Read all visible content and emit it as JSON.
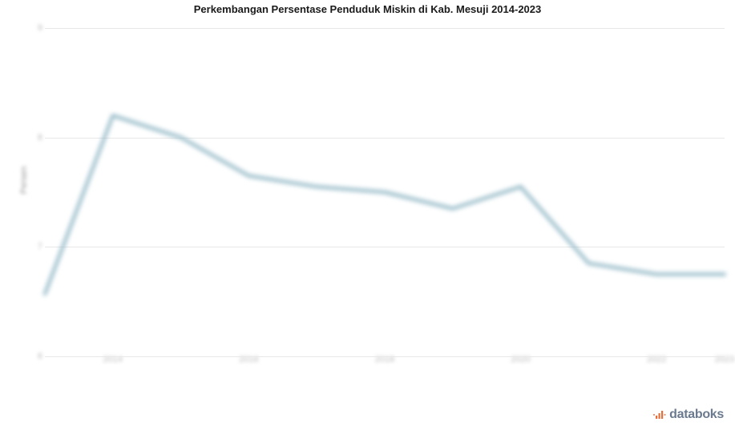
{
  "chart": {
    "type": "line",
    "title": "Perkembangan Persentase Penduduk Miskin di Kab. Mesuji 2014-2023",
    "title_fontsize": 13,
    "title_weight": "bold",
    "title_color": "#1a1a1a",
    "background_color": "#ffffff",
    "ylabel": "Persen",
    "label_fontsize": 11,
    "grid_color": "#e8e8e8",
    "line_color": "#8fb6c4",
    "line_width": 4,
    "area_blur": true,
    "xlim": [
      "2013",
      "2023"
    ],
    "ylim": [
      6,
      9
    ],
    "ytick_step": 1,
    "yticks": [
      6,
      7,
      8,
      9
    ],
    "ytick_labels": [
      "6",
      "7",
      "8",
      "9"
    ],
    "xticks": [
      "2014",
      "2016",
      "2018",
      "2020",
      "2022",
      "2023"
    ],
    "xtick_labels": [
      "2014",
      "2016",
      "2018",
      "2020",
      "2022",
      "2023"
    ],
    "x_values": [
      "2013",
      "2014",
      "2015",
      "2016",
      "2017",
      "2018",
      "2019",
      "2020",
      "2021",
      "2022",
      "2023"
    ],
    "series": [
      {
        "name": "Persentase Penduduk Miskin",
        "color": "#8fb6c4",
        "values": [
          6.57,
          8.2,
          8.0,
          7.65,
          7.55,
          7.5,
          7.35,
          7.55,
          6.85,
          6.75,
          6.75
        ]
      }
    ]
  },
  "watermark": {
    "text": "databoks",
    "icon_color": "#e36f3b",
    "text_color": "#6b7a8f"
  }
}
